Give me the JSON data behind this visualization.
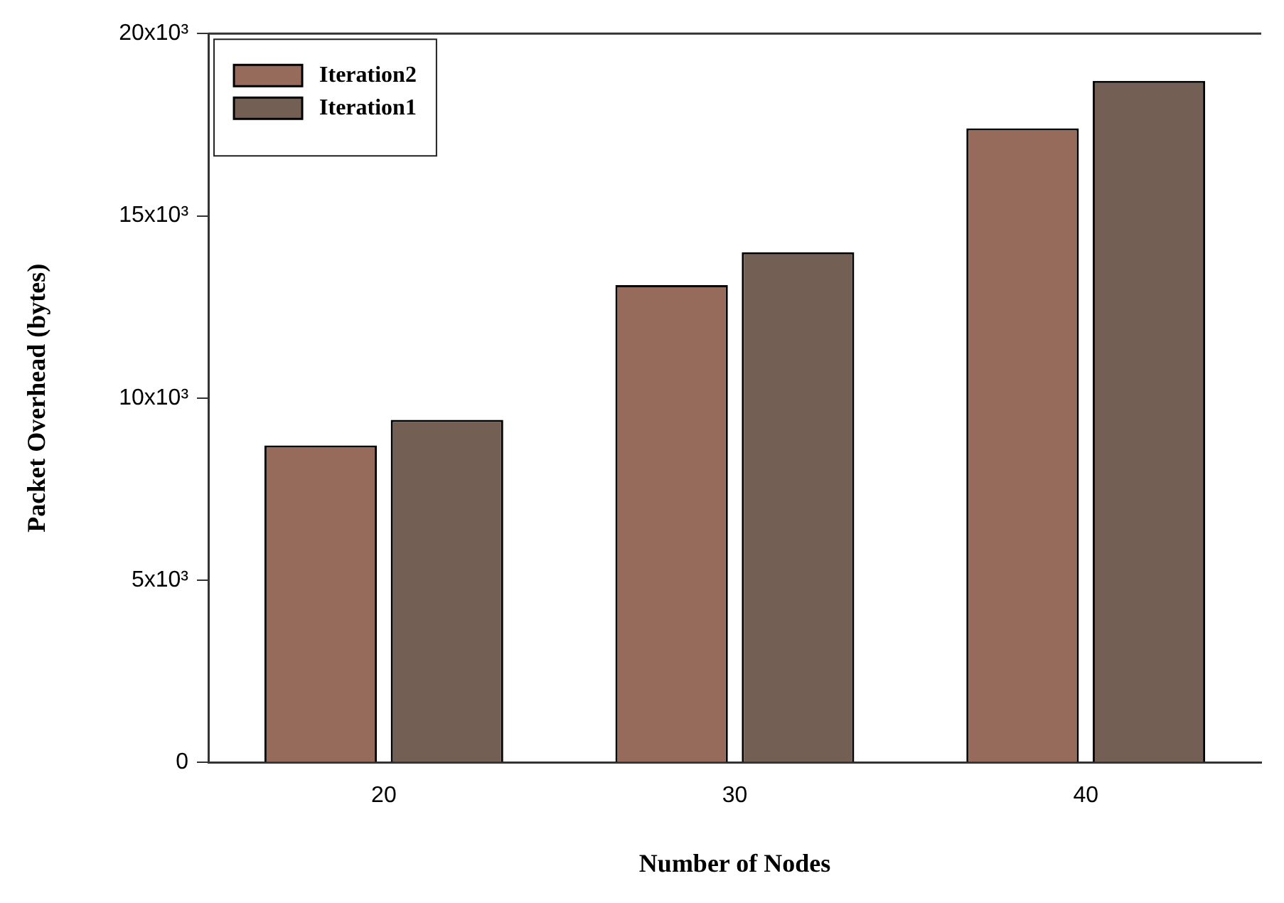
{
  "chart_data": {
    "type": "bar",
    "xlabel": "Number of Nodes",
    "ylabel": "Packet Overhead (bytes)",
    "categories": [
      "20",
      "30",
      "40"
    ],
    "series": [
      {
        "name": "Iteration2",
        "color": "#966b5b",
        "values": [
          8700,
          13100,
          17400
        ]
      },
      {
        "name": "Iteration1",
        "color": "#745f55",
        "values": [
          9400,
          14000,
          18700
        ]
      }
    ],
    "ylim": [
      0,
      20000
    ],
    "yticks": [
      0,
      {
        "value": 5000,
        "label": "5x10³"
      },
      {
        "value": 10000,
        "label": "10x10³"
      },
      {
        "value": 15000,
        "label": "15x10³"
      },
      {
        "value": 20000,
        "label": "20x10³"
      }
    ],
    "grid": false,
    "legend": "top left"
  }
}
